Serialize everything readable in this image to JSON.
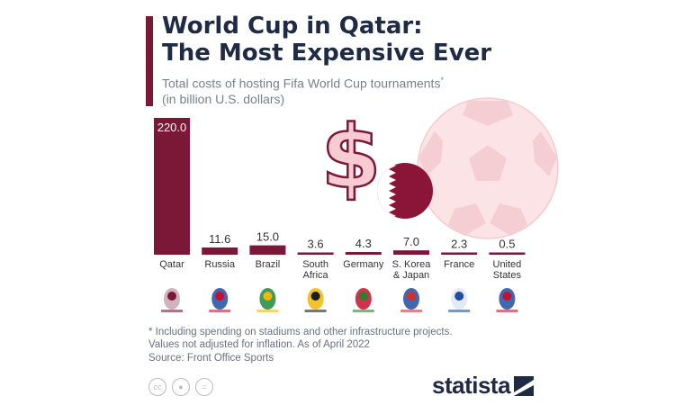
{
  "header": {
    "title": "World Cup in Qatar:\nThe Most Expensive Ever",
    "subtitle_line1": "Total costs of hosting Fifa World Cup tournaments",
    "subtitle_mark": "*",
    "subtitle_line2": "(in billion U.S. dollars)"
  },
  "chart_data": {
    "type": "bar",
    "title": "World Cup in Qatar: The Most Expensive Ever",
    "subtitle": "Total costs of hosting Fifa World Cup tournaments* (in billion U.S. dollars)",
    "categories": [
      "Qatar",
      "Russia",
      "Brazil",
      "South\nAfrica",
      "Germany",
      "S. Korea\n& Japan",
      "France",
      "United\nStates"
    ],
    "values": [
      220.0,
      11.6,
      15.0,
      3.6,
      4.3,
      7.0,
      2.3,
      0.5
    ],
    "value_labels": [
      "220.0",
      "11.6",
      "15.0",
      "3.6",
      "4.3",
      "7.0",
      "2.3",
      "0.5"
    ],
    "ylim": [
      0,
      220
    ],
    "grid": false,
    "bar_color": "#7b1838"
  },
  "footer": {
    "footnote": "* Including spending on stadiums and other infrastructure projects.\n  Values not adjusted for inflation. As of April 2022",
    "source": "Source: Front Office Sports",
    "brand": "statista"
  },
  "icons": {
    "dollar": "dollar-sign-icon",
    "flag": "qatar-flag-icon",
    "ball": "soccer-ball-icon",
    "logos": [
      "qatar-2022-logo-icon",
      "russia-2018-logo-icon",
      "brazil-2014-logo-icon",
      "south-africa-2010-logo-icon",
      "germany-2006-logo-icon",
      "korea-japan-2002-logo-icon",
      "france-1998-logo-icon",
      "usa-1994-logo-icon"
    ]
  },
  "colors": {
    "accent": "#7b1838",
    "title": "#1f2a44",
    "muted": "#7a7f8a",
    "pink": "#f5c9cf"
  }
}
